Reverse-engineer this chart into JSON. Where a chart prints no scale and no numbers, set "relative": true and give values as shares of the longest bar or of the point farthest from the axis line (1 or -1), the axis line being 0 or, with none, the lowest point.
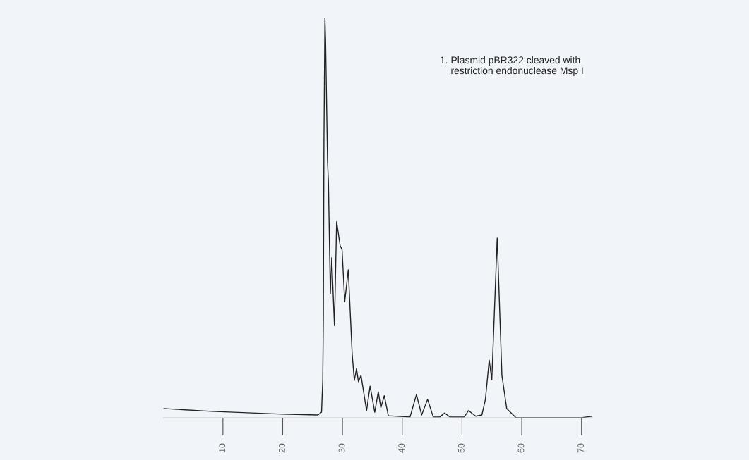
{
  "chart_data": {
    "type": "line",
    "relative": true,
    "x": [
      0.05,
      8.1,
      20.0,
      25.9,
      26.5,
      26.7,
      26.8,
      26.9,
      27.06,
      27.18,
      27.5,
      27.65,
      27.97,
      28.2,
      28.66,
      29.02,
      29.61,
      29.93,
      30.38,
      30.97,
      31.62,
      31.98,
      32.35,
      32.67,
      33.1,
      34.03,
      34.62,
      35.4,
      35.99,
      36.42,
      36.99,
      37.68,
      41.3,
      42.38,
      43.25,
      44.24,
      45.19,
      46.25,
      47.09,
      48.0,
      50.37,
      51.08,
      52.3,
      53.33,
      53.92,
      54.55,
      54.99,
      55.89,
      56.68,
      57.48,
      59.05,
      65.0,
      69.95,
      71.85
    ],
    "series": [
      {
        "color": "#222222",
        "values": [
          0.023,
          0.016,
          0.009,
          0.007,
          0.014,
          0.093,
          0.25,
          0.69,
          1.0,
          0.94,
          0.64,
          0.59,
          0.31,
          0.4,
          0.23,
          0.49,
          0.43,
          0.42,
          0.29,
          0.37,
          0.16,
          0.093,
          0.123,
          0.09,
          0.106,
          0.018,
          0.079,
          0.014,
          0.065,
          0.025,
          0.055,
          0.005,
          0.002,
          0.058,
          0.007,
          0.046,
          0.002,
          0.002,
          0.012,
          0.002,
          0.002,
          0.018,
          0.004,
          0.007,
          0.046,
          0.144,
          0.095,
          0.449,
          0.106,
          0.023,
          0.0,
          0.0,
          0.0,
          0.004
        ]
      }
    ],
    "xlim": [
      0.05,
      71.85
    ],
    "xticks": [
      10,
      20,
      30,
      40,
      50,
      60,
      70
    ],
    "grid": false,
    "legend": false,
    "annotations": [
      "1. Plasmid pBR322 cleaved with\n    restriction endonuclease Msp I"
    ]
  }
}
